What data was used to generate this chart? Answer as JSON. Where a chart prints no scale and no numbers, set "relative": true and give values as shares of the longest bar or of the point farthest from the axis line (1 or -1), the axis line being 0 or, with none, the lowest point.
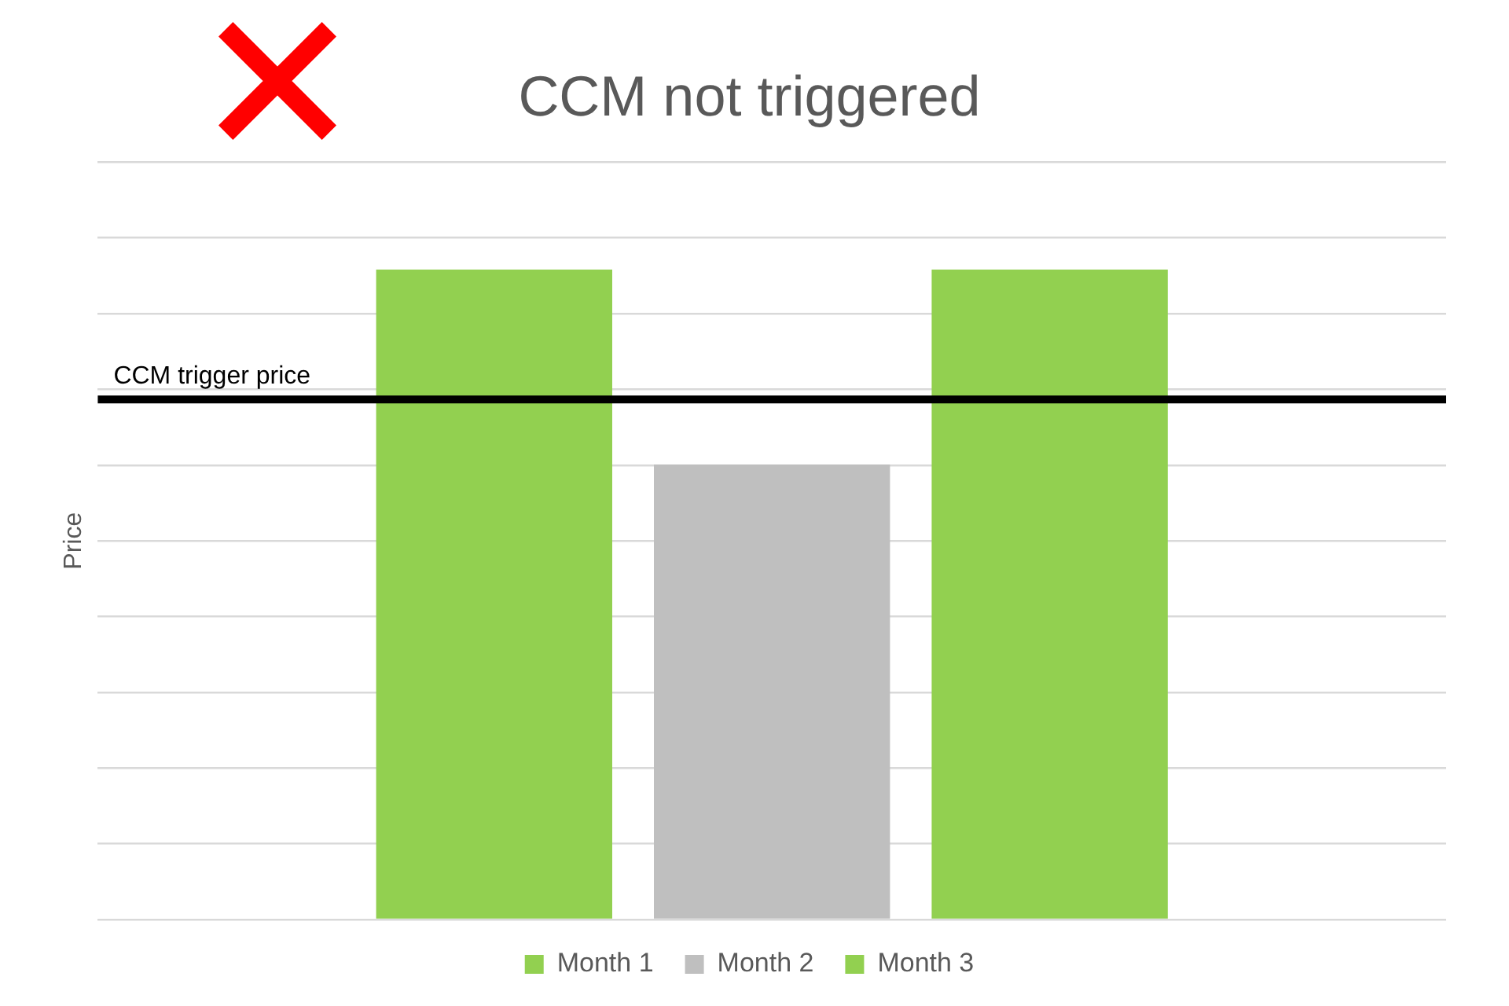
{
  "chart_data": {
    "type": "bar",
    "title": "CCM not triggered",
    "ylabel": "Price",
    "categories": [
      null
    ],
    "series": [
      {
        "name": "Month 1",
        "color": "#92d050",
        "values": [
          1
        ]
      },
      {
        "name": "Month 2",
        "color": "#bfbfbf",
        "values": [
          0.7
        ]
      },
      {
        "name": "Month 3",
        "color": "#92d050",
        "values": [
          1
        ]
      }
    ],
    "relative": true,
    "grid": "y",
    "legend": "bottom",
    "ref_lines": [
      {
        "axis": "y",
        "value": 0.8,
        "label": "CCM trigger price",
        "color": "#000000"
      }
    ]
  }
}
